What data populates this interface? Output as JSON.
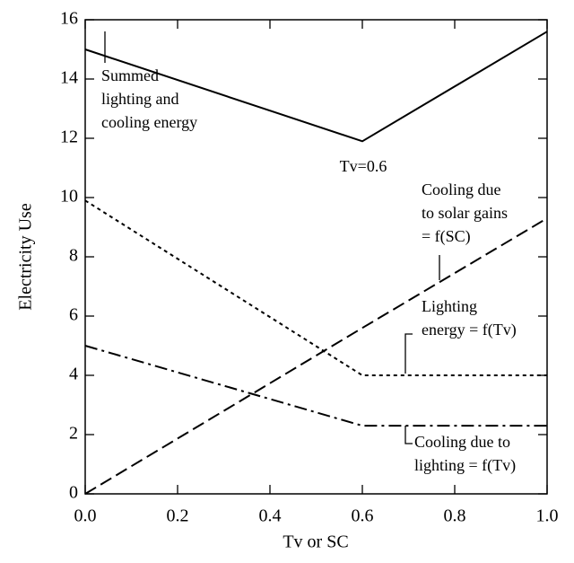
{
  "chart_data": {
    "type": "line",
    "x_label": "Tv or SC",
    "y_label": "Electricity Use",
    "x": [
      0,
      0.6,
      1.0
    ],
    "series": [
      {
        "color": "#000000",
        "dash": "none",
        "values": [
          15,
          11.9,
          15.6
        ]
      },
      {
        "color": "#000000",
        "dash": "14,6",
        "values": [
          0,
          5.6,
          9.3
        ]
      },
      {
        "color": "#000000",
        "dash": "4,4",
        "values": [
          9.9,
          4.0,
          4.0
        ]
      },
      {
        "color": "#000000",
        "dash": "14,5,3,5",
        "values": [
          5,
          2.3,
          2.3
        ]
      }
    ],
    "xlim": [
      0,
      1.0
    ],
    "ylim": [
      0,
      16
    ],
    "xticks": [
      {
        "value": 0,
        "label": "0.0"
      },
      0.2,
      0.4,
      0.6,
      0.8,
      {
        "value": 1.0,
        "label": "1.0"
      }
    ],
    "yticks": [
      0,
      2,
      4,
      6,
      8,
      10,
      12,
      14,
      16
    ],
    "annotations": [
      {
        "lines": [
          "Summed",
          "lighting and",
          "cooling energy"
        ]
      },
      {
        "lines": [
          "Tv=0.6"
        ]
      },
      {
        "lines": [
          "Cooling due",
          "to solar gains",
          "= f(SC)"
        ]
      },
      {
        "lines": [
          "Lighting",
          "energy = f(Tv)"
        ]
      },
      {
        "lines": [
          "Cooling due to",
          "lighting = f(Tv)"
        ]
      }
    ]
  }
}
